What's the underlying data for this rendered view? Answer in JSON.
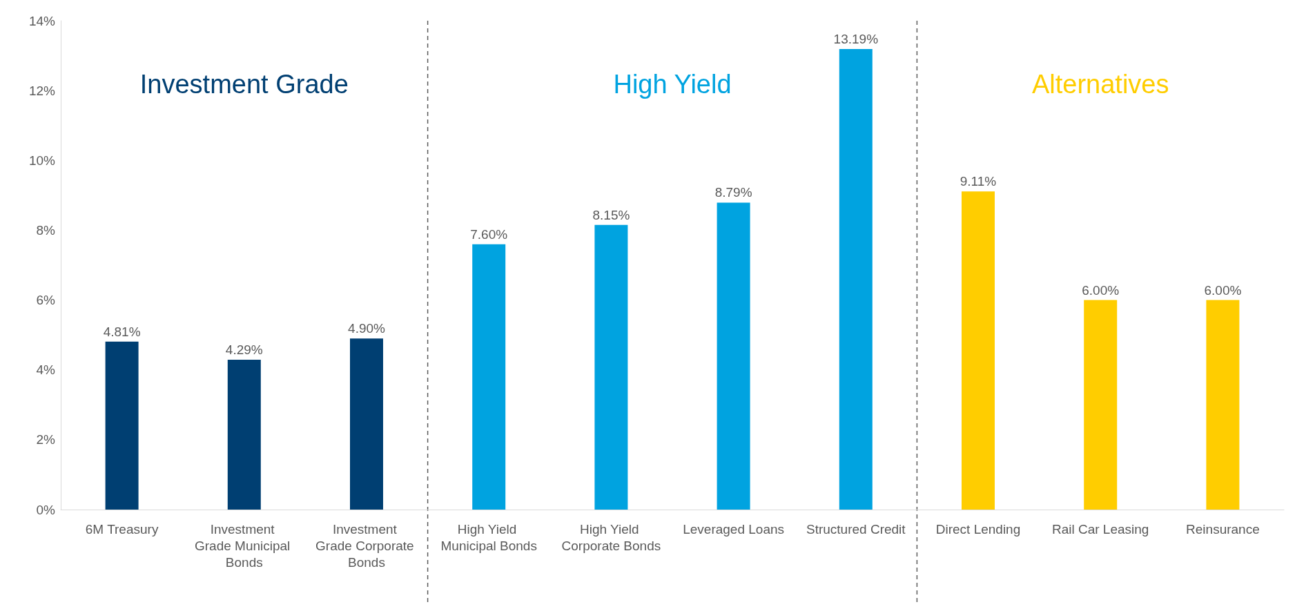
{
  "chart_data": {
    "type": "bar",
    "stacked": true,
    "categories": [
      "6M Treasury",
      "Investment Grade Municipal Bonds",
      "Investment Grade Corporate Bonds",
      "High Yield Municipal Bonds",
      "High Yield Corporate Bonds",
      "Leveraged Loans",
      "Structured Credit",
      "Direct Lending",
      "Rail Car Leasing",
      "Reinsurance"
    ],
    "series": [
      {
        "name": "Investment Grade",
        "color": "#003f72",
        "values": [
          4.81,
          4.29,
          4.9,
          null,
          null,
          null,
          null,
          null,
          null,
          null
        ],
        "value_labels": [
          "4.81%",
          "4.29%",
          "4.90%",
          null,
          null,
          null,
          null,
          null,
          null,
          null
        ]
      },
      {
        "name": "High Yield",
        "color": "#00a3e0",
        "values": [
          null,
          null,
          null,
          7.6,
          8.15,
          8.79,
          13.19,
          null,
          null,
          null
        ],
        "value_labels": [
          null,
          null,
          null,
          "7.60%",
          "8.15%",
          "8.79%",
          "13.19%",
          null,
          null,
          null
        ]
      },
      {
        "name": "Alternatives",
        "color": "#ffcd00",
        "values": [
          null,
          null,
          null,
          null,
          null,
          null,
          null,
          9.11,
          6.0,
          6.0
        ],
        "value_labels": [
          null,
          null,
          null,
          null,
          null,
          null,
          null,
          "9.11%",
          "6.00%",
          "6.00%"
        ]
      }
    ],
    "ylim": [
      0,
      14
    ],
    "yticks": [
      {
        "value": 0,
        "label": "0%"
      },
      {
        "value": 2,
        "label": "2%"
      },
      {
        "value": 4,
        "label": "4%"
      },
      {
        "value": 6,
        "label": "6%"
      },
      {
        "value": 8,
        "label": "8%"
      },
      {
        "value": 10,
        "label": "10%"
      },
      {
        "value": 12,
        "label": "12%"
      },
      {
        "value": 14,
        "label": "14%"
      }
    ],
    "grid": false,
    "legend": false
  }
}
